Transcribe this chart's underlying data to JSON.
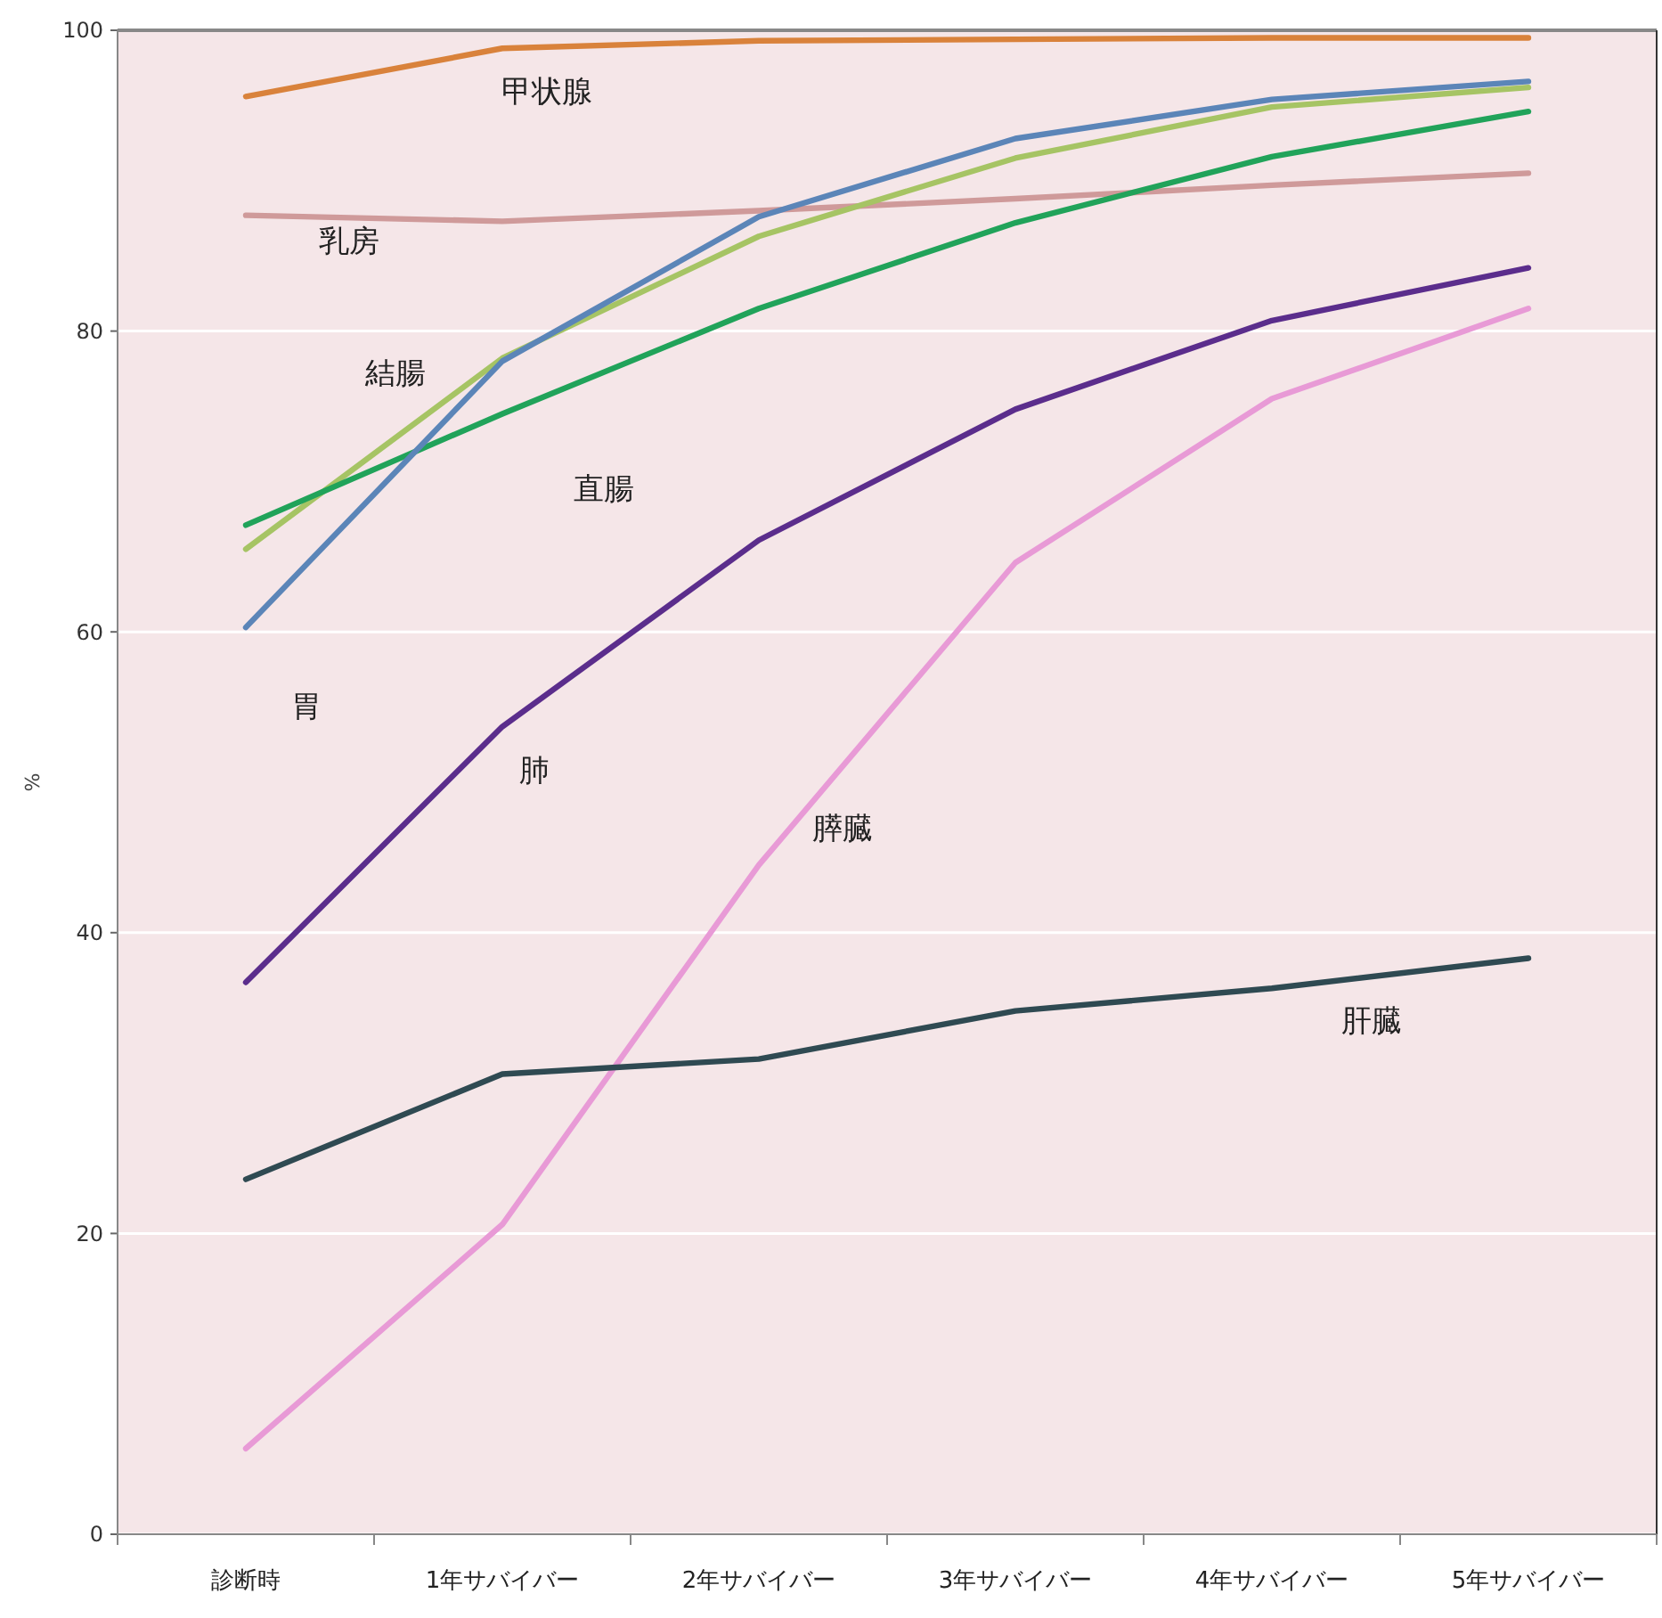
{
  "chart_data": {
    "type": "line",
    "ylabel": "%",
    "categories": [
      "診断時",
      "1年サバイバー",
      "2年サバイバー",
      "3年サバイバー",
      "4年サバイバー",
      "5年サバイバー"
    ],
    "ylim": [
      0,
      100
    ],
    "yticks": [
      0,
      20,
      40,
      60,
      80,
      100
    ],
    "grid": "y",
    "marker": "none",
    "line_style": "solid",
    "series": [
      {
        "name": "甲状腺",
        "color": "#d9823b",
        "values": [
          95.6,
          98.8,
          99.3,
          99.4,
          99.5,
          99.5
        ]
      },
      {
        "name": "乳房",
        "color": "#cf9a9a",
        "values": [
          87.7,
          87.3,
          88.0,
          88.8,
          89.7,
          90.5
        ]
      },
      {
        "name": "結腸",
        "color": "#a6c464",
        "values": [
          65.5,
          78.2,
          86.3,
          91.5,
          94.9,
          96.2
        ]
      },
      {
        "name": "直腸",
        "color": "#21a35a",
        "values": [
          67.1,
          74.5,
          81.5,
          87.2,
          91.6,
          94.6
        ]
      },
      {
        "name": "胃",
        "color": "#5b85b8",
        "values": [
          60.3,
          78.0,
          87.6,
          92.8,
          95.4,
          96.6
        ]
      },
      {
        "name": "肺",
        "color": "#5b2d8c",
        "values": [
          36.7,
          53.7,
          66.1,
          74.8,
          80.7,
          84.2
        ]
      },
      {
        "name": "膵臓",
        "color": "#e89ad6",
        "values": [
          5.7,
          20.6,
          44.5,
          64.6,
          75.5,
          81.5
        ]
      },
      {
        "name": "肝臓",
        "color": "#2f4a52",
        "values": [
          23.6,
          30.6,
          31.6,
          34.8,
          36.3,
          38.3
        ]
      }
    ]
  }
}
